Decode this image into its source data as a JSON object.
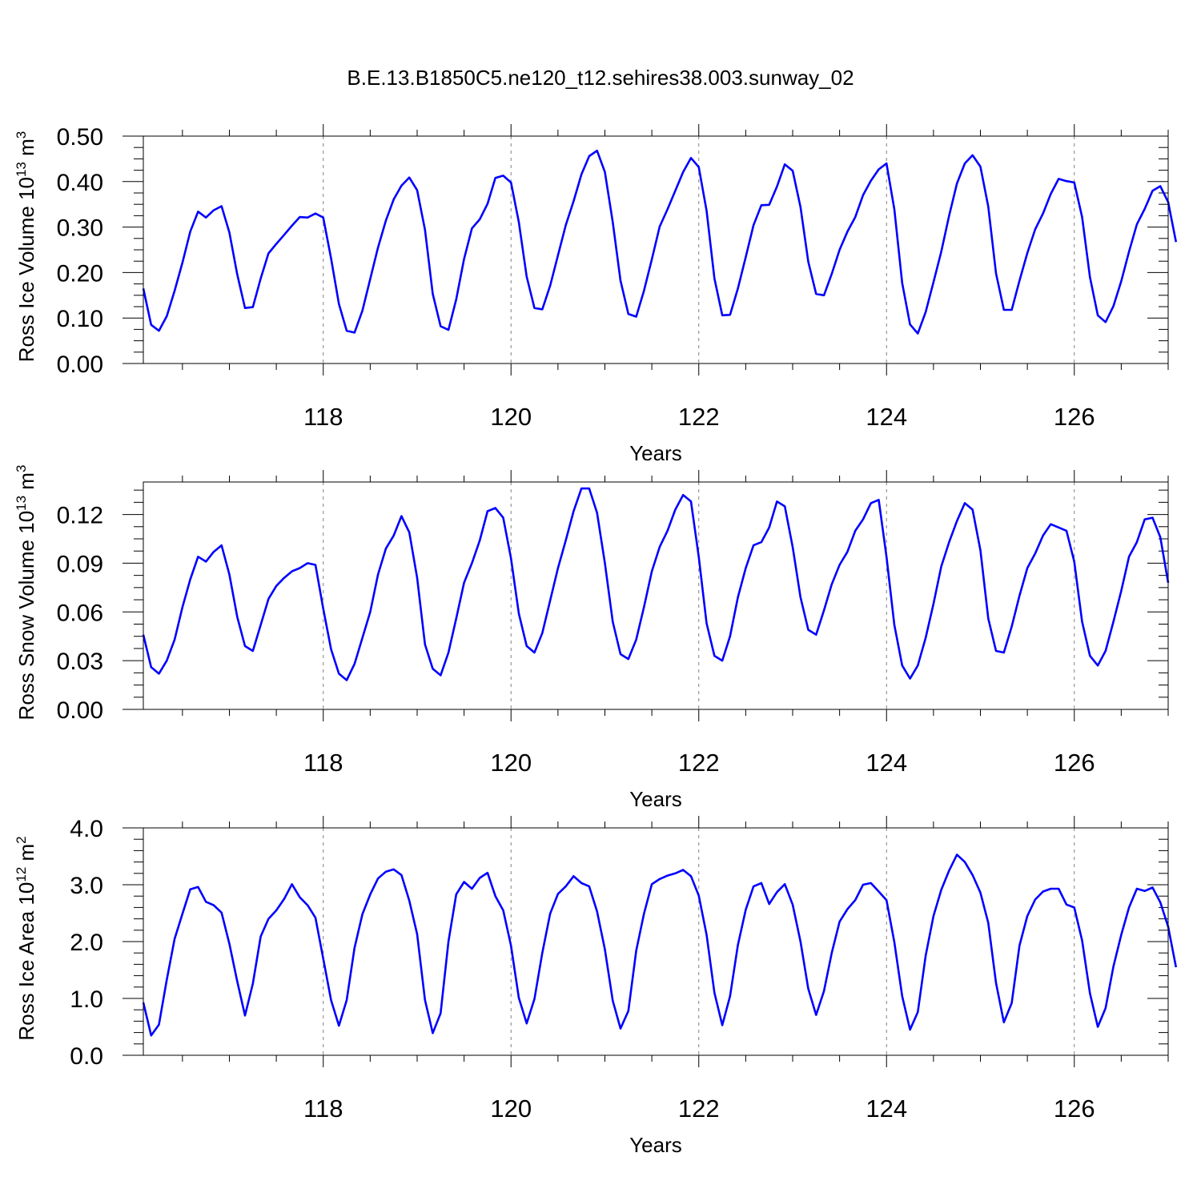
{
  "figure": {
    "title": "B.E.13.B1850C5.ne120_t12.sehires38.003.sunway_02"
  },
  "colors": {
    "line": "#0000ff",
    "axis": "#000000",
    "grid": "#808080"
  },
  "chart_data": [
    {
      "type": "line",
      "ylabel": "Ross Ice Volume 10",
      "ylabel_exp": "13",
      "ylabel_unit": " m",
      "ylabel_unit_exp": "3",
      "xlabel": "Years",
      "xlim": [
        116.0833,
        127.0
      ],
      "ylim": [
        0,
        0.5
      ],
      "x_ticks": [
        118,
        120,
        122,
        124,
        126
      ],
      "y_ticks": [
        0,
        0.1,
        0.2,
        0.3,
        0.4,
        0.5
      ],
      "y_tick_labels": [
        "0.00",
        "0.10",
        "0.20",
        "0.30",
        "0.40",
        "0.50"
      ],
      "y_minor_step": 0.025,
      "grid": "dashed vertical lines at labeled years",
      "series": [
        {
          "values": [
            0.165,
            0.085,
            0.072,
            0.104,
            0.16,
            0.222,
            0.29,
            0.334,
            0.321,
            0.337,
            0.346,
            0.288,
            0.196,
            0.122,
            0.124,
            0.187,
            0.242,
            0.263,
            0.283,
            0.303,
            0.322,
            0.321,
            0.33,
            0.321,
            0.231,
            0.131,
            0.072,
            0.068,
            0.116,
            0.186,
            0.255,
            0.314,
            0.361,
            0.391,
            0.409,
            0.381,
            0.294,
            0.153,
            0.082,
            0.074,
            0.141,
            0.23,
            0.297,
            0.317,
            0.351,
            0.408,
            0.413,
            0.398,
            0.311,
            0.191,
            0.122,
            0.119,
            0.171,
            0.238,
            0.304,
            0.357,
            0.416,
            0.456,
            0.468,
            0.421,
            0.311,
            0.182,
            0.109,
            0.103,
            0.16,
            0.229,
            0.301,
            0.339,
            0.38,
            0.421,
            0.452,
            0.432,
            0.336,
            0.187,
            0.106,
            0.107,
            0.165,
            0.234,
            0.304,
            0.348,
            0.349,
            0.389,
            0.438,
            0.424,
            0.344,
            0.224,
            0.153,
            0.15,
            0.197,
            0.25,
            0.29,
            0.322,
            0.37,
            0.402,
            0.427,
            0.44,
            0.339,
            0.177,
            0.086,
            0.066,
            0.113,
            0.179,
            0.246,
            0.325,
            0.396,
            0.44,
            0.458,
            0.433,
            0.345,
            0.198,
            0.118,
            0.118,
            0.182,
            0.243,
            0.295,
            0.33,
            0.373,
            0.406,
            0.401,
            0.398,
            0.322,
            0.19,
            0.106,
            0.091,
            0.126,
            0.181,
            0.246,
            0.306,
            0.34,
            0.38,
            0.39,
            0.355,
            0.267
          ]
        }
      ]
    },
    {
      "type": "line",
      "ylabel": "Ross Snow Volume 10",
      "ylabel_exp": "13",
      "ylabel_unit": " m",
      "ylabel_unit_exp": "3",
      "xlabel": "Years",
      "xlim": [
        116.0833,
        127.0
      ],
      "ylim": [
        0,
        0.14
      ],
      "x_ticks": [
        118,
        120,
        122,
        124,
        126
      ],
      "y_ticks": [
        0,
        0.03,
        0.06,
        0.09,
        0.12
      ],
      "y_tick_labels": [
        "0.00",
        "0.03",
        "0.06",
        "0.09",
        "0.12"
      ],
      "y_minor_step": 0.0075,
      "grid": "dashed vertical lines at labeled years",
      "series": [
        {
          "values": [
            0.046,
            0.026,
            0.022,
            0.03,
            0.043,
            0.063,
            0.08,
            0.094,
            0.091,
            0.097,
            0.101,
            0.083,
            0.057,
            0.039,
            0.036,
            0.052,
            0.068,
            0.076,
            0.081,
            0.085,
            0.087,
            0.09,
            0.089,
            0.062,
            0.037,
            0.022,
            0.018,
            0.028,
            0.044,
            0.06,
            0.083,
            0.099,
            0.107,
            0.119,
            0.109,
            0.081,
            0.04,
            0.025,
            0.021,
            0.035,
            0.056,
            0.078,
            0.09,
            0.104,
            0.122,
            0.124,
            0.118,
            0.093,
            0.059,
            0.039,
            0.035,
            0.047,
            0.067,
            0.087,
            0.104,
            0.122,
            0.136,
            0.136,
            0.121,
            0.09,
            0.054,
            0.034,
            0.031,
            0.043,
            0.063,
            0.085,
            0.1,
            0.11,
            0.123,
            0.132,
            0.128,
            0.094,
            0.053,
            0.033,
            0.03,
            0.045,
            0.069,
            0.087,
            0.101,
            0.103,
            0.112,
            0.128,
            0.125,
            0.1,
            0.069,
            0.049,
            0.046,
            0.061,
            0.077,
            0.089,
            0.097,
            0.11,
            0.117,
            0.127,
            0.129,
            0.094,
            0.052,
            0.027,
            0.019,
            0.027,
            0.044,
            0.065,
            0.088,
            0.103,
            0.116,
            0.127,
            0.123,
            0.098,
            0.056,
            0.036,
            0.035,
            0.051,
            0.07,
            0.087,
            0.096,
            0.107,
            0.114,
            0.112,
            0.11,
            0.091,
            0.054,
            0.033,
            0.027,
            0.036,
            0.054,
            0.073,
            0.094,
            0.103,
            0.117,
            0.118,
            0.106,
            0.078
          ]
        }
      ]
    },
    {
      "type": "line",
      "ylabel": "Ross Ice Area 10",
      "ylabel_exp": "12",
      "ylabel_unit": " m",
      "ylabel_unit_exp": "2",
      "xlabel": "Years",
      "xlim": [
        116.0833,
        127.0
      ],
      "ylim": [
        0,
        4.0
      ],
      "x_ticks": [
        118,
        120,
        122,
        124,
        126
      ],
      "y_ticks": [
        0,
        1,
        2,
        3,
        4
      ],
      "y_tick_labels": [
        "0.0",
        "1.0",
        "2.0",
        "3.0",
        "4.0"
      ],
      "y_minor_step": 0.2,
      "grid": "dashed vertical lines at labeled years",
      "series": [
        {
          "values": [
            0.93,
            0.35,
            0.54,
            1.33,
            2.05,
            2.49,
            2.92,
            2.96,
            2.7,
            2.64,
            2.51,
            1.96,
            1.3,
            0.7,
            1.26,
            2.09,
            2.4,
            2.55,
            2.75,
            3.01,
            2.78,
            2.64,
            2.42,
            1.7,
            0.97,
            0.52,
            0.97,
            1.89,
            2.48,
            2.83,
            3.11,
            3.23,
            3.27,
            3.17,
            2.72,
            2.13,
            0.97,
            0.39,
            0.74,
            2.0,
            2.83,
            3.05,
            2.93,
            3.12,
            3.21,
            2.8,
            2.55,
            1.93,
            1.01,
            0.56,
            0.99,
            1.8,
            2.49,
            2.84,
            2.97,
            3.15,
            3.03,
            2.97,
            2.53,
            1.86,
            0.96,
            0.47,
            0.78,
            1.84,
            2.49,
            3.01,
            3.1,
            3.16,
            3.2,
            3.26,
            3.15,
            2.81,
            2.12,
            1.1,
            0.53,
            1.04,
            1.94,
            2.56,
            2.97,
            3.03,
            2.66,
            2.87,
            3.01,
            2.65,
            2.0,
            1.17,
            0.71,
            1.13,
            1.8,
            2.35,
            2.57,
            2.73,
            3.0,
            3.03,
            2.88,
            2.73,
            1.99,
            1.04,
            0.45,
            0.76,
            1.75,
            2.45,
            2.91,
            3.25,
            3.53,
            3.4,
            3.17,
            2.86,
            2.33,
            1.27,
            0.58,
            0.92,
            1.93,
            2.45,
            2.74,
            2.88,
            2.93,
            2.93,
            2.65,
            2.6,
            2.02,
            1.09,
            0.5,
            0.83,
            1.56,
            2.12,
            2.6,
            2.93,
            2.89,
            2.95,
            2.69,
            2.26,
            1.55
          ]
        }
      ]
    }
  ]
}
